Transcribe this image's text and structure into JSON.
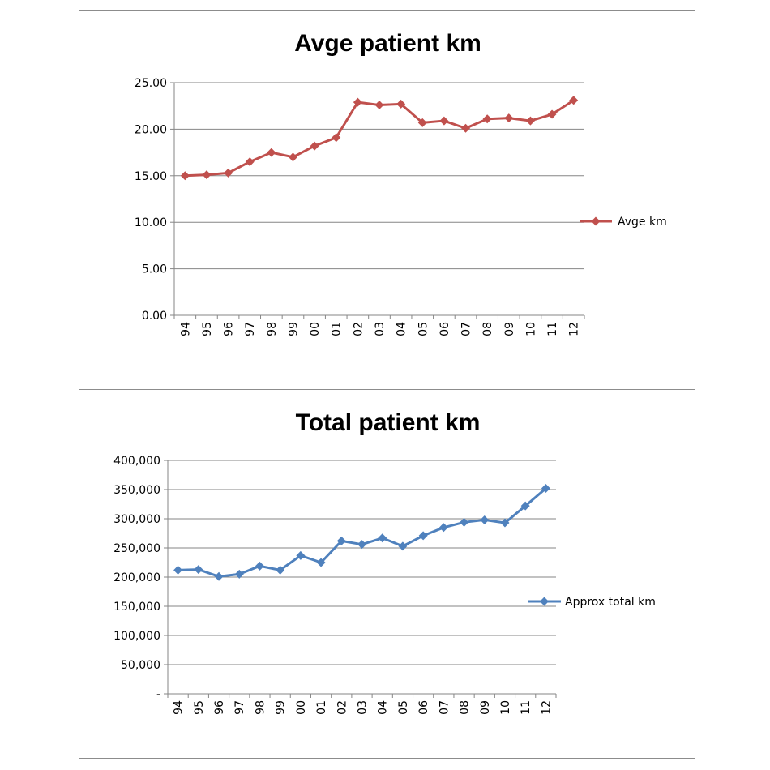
{
  "chart_data": [
    {
      "type": "line",
      "title": "Avge patient km",
      "categories": [
        "94",
        "95",
        "96",
        "97",
        "98",
        "99",
        "00",
        "01",
        "02",
        "03",
        "04",
        "05",
        "06",
        "07",
        "08",
        "09",
        "10",
        "11",
        "12"
      ],
      "series": [
        {
          "name": "Avge km",
          "values": [
            15.0,
            15.1,
            15.3,
            16.5,
            17.5,
            17.0,
            18.2,
            19.1,
            22.9,
            22.6,
            22.7,
            20.7,
            20.9,
            20.1,
            21.1,
            21.2,
            20.9,
            21.6,
            23.1
          ]
        }
      ],
      "ylim": [
        0,
        25
      ],
      "yticks": [
        0,
        5,
        10,
        15,
        20,
        25
      ],
      "yticklabels": [
        "0.00",
        "5.00",
        "10.00",
        "15.00",
        "20.00",
        "25.00"
      ],
      "xlabel": "",
      "ylabel": "",
      "grid": true,
      "legend": "right",
      "color": "#c0504d"
    },
    {
      "type": "line",
      "title": "Total patient km",
      "categories": [
        "94",
        "95",
        "96",
        "97",
        "98",
        "99",
        "00",
        "01",
        "02",
        "03",
        "04",
        "05",
        "06",
        "07",
        "08",
        "09",
        "10",
        "11",
        "12"
      ],
      "series": [
        {
          "name": "Approx total km",
          "values": [
            212000,
            213000,
            201000,
            205000,
            219000,
            212000,
            237000,
            225000,
            262000,
            256000,
            267000,
            253000,
            271000,
            285000,
            294000,
            298000,
            293000,
            322000,
            352000
          ]
        }
      ],
      "ylim": [
        0,
        400000
      ],
      "yticks": [
        0,
        50000,
        100000,
        150000,
        200000,
        250000,
        300000,
        350000,
        400000
      ],
      "yticklabels": [
        "-",
        "50,000",
        "100,000",
        "150,000",
        "200,000",
        "250,000",
        "300,000",
        "350,000",
        "400,000"
      ],
      "xlabel": "",
      "ylabel": "",
      "grid": true,
      "legend": "right",
      "color": "#4f81bd"
    }
  ]
}
